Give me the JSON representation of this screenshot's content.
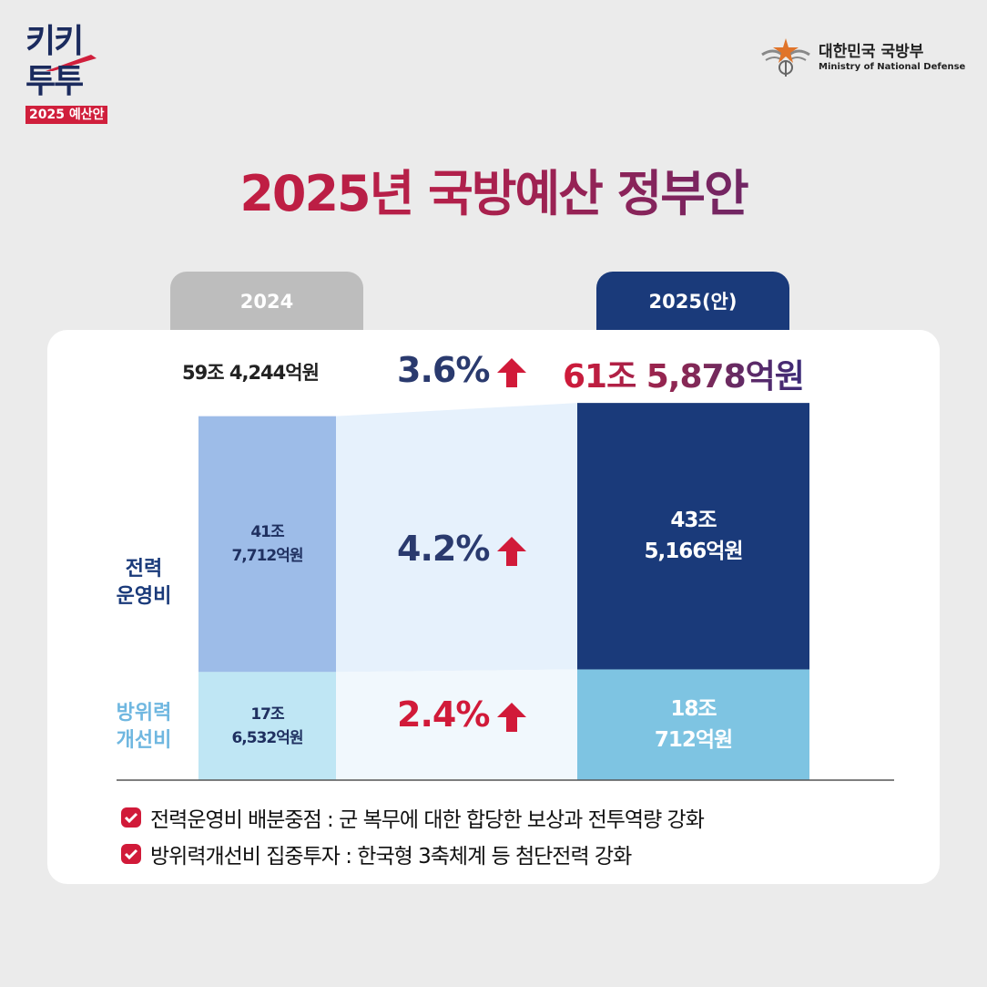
{
  "brand": {
    "line1": "키키",
    "line2": "투투",
    "badge": "2025 예산안"
  },
  "ministry": {
    "name_ko": "대한민국 국방부",
    "name_en": "Ministry of National Defense"
  },
  "title": "2025년 국방예산 정부안",
  "tabs": {
    "y2024": "2024",
    "y2025": "2025(안)"
  },
  "totals": {
    "y2024": "59조 4,244억원",
    "y2025": "61조 5,878억원",
    "growth": "3.6%"
  },
  "categories": {
    "ops": {
      "line1": "전력",
      "line2": "운영비"
    },
    "dev": {
      "line1": "방위력",
      "line2": "개선비"
    }
  },
  "bars": {
    "ops_2024": {
      "line1": "41조",
      "line2": "7,712억원"
    },
    "dev_2024": {
      "line1": "17조",
      "line2": "6,532억원"
    },
    "ops_2025": {
      "line1": "43조",
      "line2": "5,166억원"
    },
    "dev_2025": {
      "line1": "18조",
      "line2": "712억원"
    }
  },
  "growth": {
    "ops": "4.2%",
    "dev": "2.4%"
  },
  "notes": [
    "전력운영비 배분중점 : 군 복무에 대한 합당한 보상과 전투역량 강화",
    "방위력개선비 집중투자 : 한국형 3축체계 등 첨단전력 강화"
  ],
  "colors": {
    "ops_2024": "#9dbce8",
    "dev_2024": "#bfe6f4",
    "ops_2025": "#1a3a7a",
    "dev_2025": "#7ec4e2",
    "accent_red": "#d11a39",
    "navy": "#2a3a6e"
  },
  "chart_data": {
    "type": "bar",
    "stacked": true,
    "categories": [
      "2024",
      "2025(안)"
    ],
    "series": [
      {
        "name": "방위력 개선비",
        "values": [
          17.6532,
          18.0712
        ]
      },
      {
        "name": "전력 운영비",
        "values": [
          41.7712,
          43.5166
        ]
      }
    ],
    "totals": [
      59.4244,
      61.5878
    ],
    "growth_pct": {
      "total": 3.6,
      "전력 운영비": 4.2,
      "방위력 개선비": 2.4
    }
  }
}
